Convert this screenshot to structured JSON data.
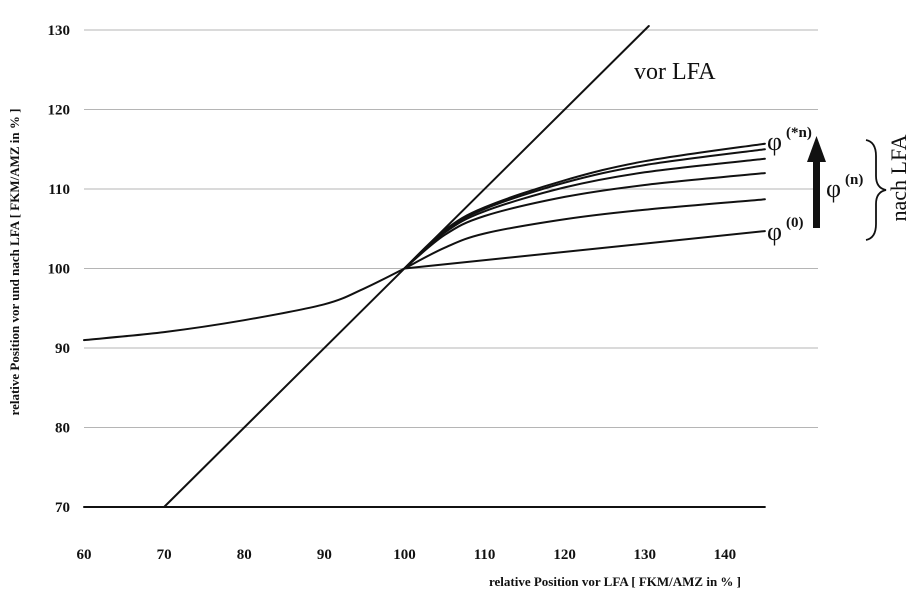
{
  "chart_data": {
    "type": "line",
    "title": "",
    "xlabel": "relative Position vor LFA  [ FKM/AMZ in % ]",
    "ylabel": "relative Position vor und nach LFA  [ FKM/AMZ in % ]",
    "xlim": [
      60,
      150
    ],
    "ylim": [
      70,
      130
    ],
    "x_ticks": [
      60,
      70,
      80,
      90,
      100,
      110,
      120,
      130,
      140
    ],
    "y_ticks": [
      70,
      80,
      90,
      100,
      110,
      120,
      130
    ],
    "grid": "horizontal",
    "series": [
      {
        "name": "vor LFA",
        "x": [
          70,
          130.5
        ],
        "y": [
          70,
          130.5
        ]
      },
      {
        "name": "",
        "x": [
          60,
          70,
          80,
          90,
          95,
          100
        ],
        "y": [
          91,
          92,
          93.5,
          95.5,
          97.5,
          100
        ]
      },
      {
        "name": "φ(0)",
        "x": [
          100,
          145
        ],
        "y": [
          100,
          104.7
        ]
      },
      {
        "name": "",
        "x": [
          100,
          105,
          110,
          120,
          130,
          145
        ],
        "y": [
          100,
          102.6,
          104.4,
          106.2,
          107.4,
          108.7
        ]
      },
      {
        "name": "",
        "x": [
          100,
          105,
          110,
          120,
          130,
          145
        ],
        "y": [
          100,
          104.2,
          106.6,
          109,
          110.5,
          112
        ]
      },
      {
        "name": "",
        "x": [
          100,
          105,
          110,
          120,
          130,
          145
        ],
        "y": [
          100,
          104.5,
          107.2,
          110.2,
          112.1,
          113.8
        ]
      },
      {
        "name": "",
        "x": [
          100,
          105,
          110,
          120,
          130,
          145
        ],
        "y": [
          100,
          104.7,
          107.5,
          110.8,
          113,
          115
        ]
      },
      {
        "name": "φ(*n)",
        "x": [
          100,
          105,
          110,
          120,
          130,
          145
        ],
        "y": [
          100,
          104.8,
          107.7,
          111.1,
          113.5,
          115.7
        ]
      },
      {
        "name": "",
        "x": [
          60,
          145
        ],
        "y": [
          70,
          70
        ]
      }
    ],
    "annotations": {
      "line_label": "vor LFA",
      "phi_star_n": {
        "base": "φ",
        "sup": "(*n)"
      },
      "phi_zero": {
        "base": "φ",
        "sup": "(0)"
      },
      "phi_n": {
        "base": "φ",
        "sup": "(n)"
      },
      "nach_label": "nach LFA"
    }
  }
}
